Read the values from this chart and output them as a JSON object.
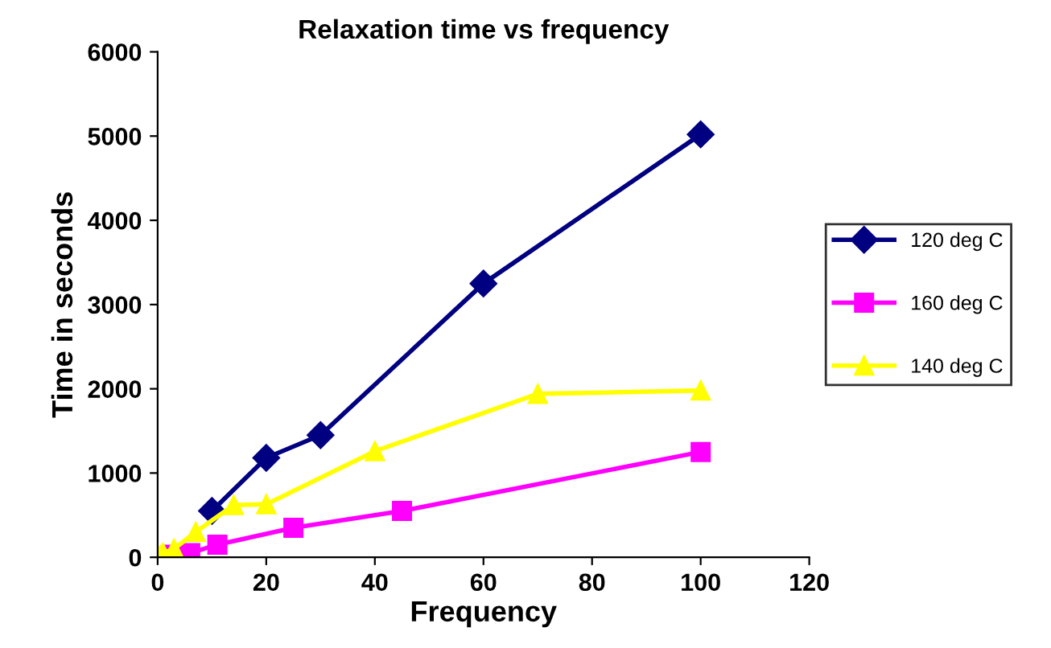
{
  "chart_data": {
    "type": "line",
    "title": "Relaxation time vs frequency",
    "xlabel": "Frequency",
    "ylabel": "Time in seconds",
    "xlim": [
      0,
      120
    ],
    "xticks": [
      0,
      20,
      40,
      60,
      80,
      100,
      120
    ],
    "ylim": [
      0,
      6000
    ],
    "yticks": [
      0,
      1000,
      2000,
      3000,
      4000,
      5000,
      6000
    ],
    "grid": false,
    "legend": "right",
    "series": [
      {
        "name": "120 deg C",
        "color": "#000080",
        "marker": "diamond",
        "x": [
          10,
          20,
          30,
          60,
          100
        ],
        "values": [
          550,
          1180,
          1450,
          3250,
          5020
        ]
      },
      {
        "name": "160 deg C",
        "color": "#ff00ff",
        "marker": "square",
        "x": [
          0,
          3,
          6,
          11,
          25,
          45,
          100
        ],
        "values": [
          0,
          30,
          50,
          150,
          350,
          550,
          1250
        ]
      },
      {
        "name": "140 deg C",
        "color": "#ffff00",
        "marker": "triangle",
        "x": [
          0.5,
          1,
          3,
          7,
          14,
          20,
          40,
          70,
          100
        ],
        "values": [
          20,
          50,
          100,
          300,
          620,
          630,
          1260,
          1940,
          1980
        ]
      }
    ]
  }
}
